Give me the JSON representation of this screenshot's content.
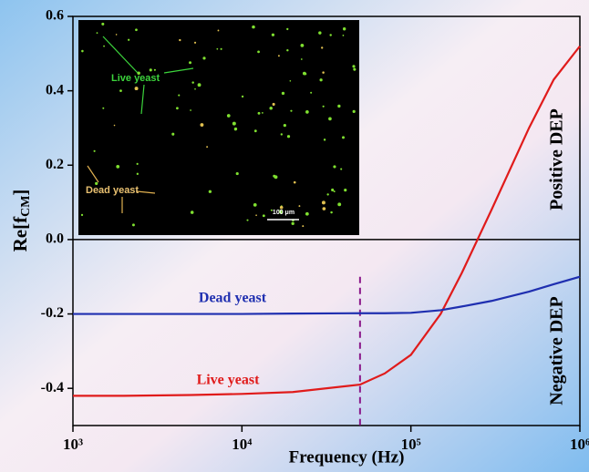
{
  "chart_data": {
    "type": "line",
    "x": [
      1000,
      2000,
      5000,
      10000,
      20000,
      50000,
      70000,
      100000,
      150000,
      200000,
      300000,
      500000,
      700000,
      1000000
    ],
    "series": [
      {
        "name": "Live yeast",
        "color": "#e01b1b",
        "values": [
          -0.42,
          -0.42,
          -0.418,
          -0.415,
          -0.41,
          -0.39,
          -0.36,
          -0.31,
          -0.2,
          -0.09,
          0.08,
          0.3,
          0.43,
          0.52
        ]
      },
      {
        "name": "Dead yeast",
        "color": "#1f2fb0",
        "values": [
          -0.2,
          -0.2,
          -0.2,
          -0.2,
          -0.199,
          -0.198,
          -0.198,
          -0.197,
          -0.19,
          -0.18,
          -0.165,
          -0.14,
          -0.12,
          -0.1
        ]
      }
    ],
    "x_label": "Frequency (Hz)",
    "y_label": {
      "main": "Re[f",
      "sub": "CM",
      "close": "]"
    },
    "xscale": "log",
    "xlim": [
      1000,
      1000000
    ],
    "xticks": [
      {
        "value": 1000,
        "label": "10³"
      },
      {
        "value": 10000,
        "label": "10⁴"
      },
      {
        "value": 100000,
        "label": "10⁵"
      },
      {
        "value": 1000000,
        "label": "10⁶"
      }
    ],
    "ylim": [
      -0.5,
      0.6
    ],
    "yticks": [
      -0.4,
      -0.2,
      {
        "value": 0,
        "label": "0.0"
      },
      0.2,
      0.4,
      0.6
    ],
    "vline": {
      "x": 50000,
      "color": "#8b1a8b"
    },
    "annotations": [
      "Positive DEP",
      "Negative DEP"
    ],
    "inset": {
      "labels": [
        "Live yeast",
        "Dead yeast",
        "100 μm"
      ]
    }
  }
}
